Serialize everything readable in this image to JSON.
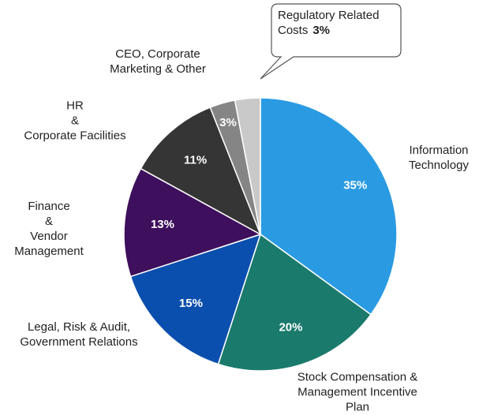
{
  "chart_data": {
    "type": "pie",
    "categories": [
      "Information\nTechnology",
      "Stock Compensation &\nManagement Incentive Plan",
      "Legal, Risk & Audit,\nGovernment Relations",
      "Finance\n&\nVendor\nManagement",
      "HR\n&\nCorporate Facilities",
      "CEO, Corporate\nMarketing & Other",
      "Regulatory Related\nCosts"
    ],
    "values": [
      35,
      20,
      15,
      13,
      11,
      3,
      3
    ],
    "value_labels": [
      "35%",
      "20%",
      "15%",
      "13%",
      "11%",
      "3%",
      "3%"
    ],
    "colors": [
      "#2a9be2",
      "#1a7a6c",
      "#0b4fae",
      "#3e0f5c",
      "#353535",
      "#858585",
      "#c9c9c9"
    ]
  }
}
